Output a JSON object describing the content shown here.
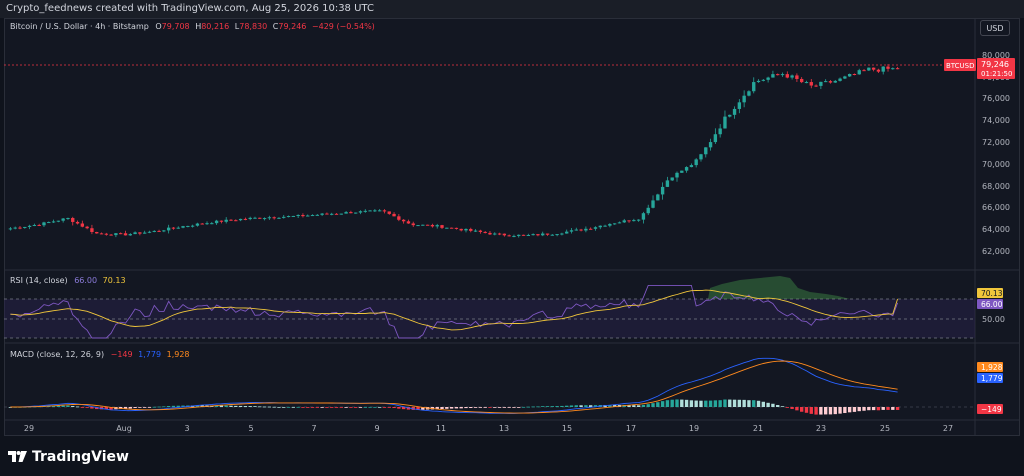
{
  "header": {
    "attribution": "Crypto_feednews created with TradingView.com, Aug 25, 2026 10:38 UTC"
  },
  "currency_button": "USD",
  "legend_main": {
    "title": "Bitcoin / U.S. Dollar · 4h · Bitstamp",
    "o_label": "O",
    "o_value": "79,708",
    "h_label": "H",
    "h_value": "80,216",
    "l_label": "L",
    "l_value": "78,830",
    "c_label": "C",
    "c_value": "79,246",
    "change": "−429 (−0.54%)"
  },
  "legend_rsi": {
    "title": "RSI (14, close)",
    "v1": "66.00",
    "v2": "70.13"
  },
  "legend_macd": {
    "title": "MACD (close, 12, 26, 9)",
    "v1": "−149",
    "v2": "1,779",
    "v3": "1,928"
  },
  "price_axis": {
    "ticks": [
      "80,000",
      "78,000",
      "76,000",
      "74,000",
      "72,000",
      "70,000",
      "68,000",
      "66,000",
      "64,000",
      "62,000"
    ],
    "symbol_tag": "BTCUSD",
    "last_price": "79,246",
    "countdown": "01:21:50"
  },
  "rsi_axis": {
    "ticks": [
      "50.00"
    ],
    "badge_top": "70.13",
    "badge_bottom": "66.00"
  },
  "macd_axis": {
    "badge_signal": "1,928",
    "badge_macd": "1,779",
    "badge_hist": "−149"
  },
  "time_axis": [
    "29",
    "Aug",
    "3",
    "5",
    "7",
    "9",
    "11",
    "13",
    "15",
    "17",
    "19",
    "21",
    "23",
    "25",
    "27"
  ],
  "footer": {
    "brand": "TradingView"
  },
  "colors": {
    "up": "#26a69a",
    "down": "#f23645",
    "rsi": "#7e57c2",
    "rsi_ma": "#f0c63b",
    "macd": "#2962ff",
    "signal": "#ff8a1e",
    "background": "#131722"
  },
  "chart_data": [
    {
      "type": "candlestick",
      "title": "Bitcoin / U.S. Dollar · 4h · Bitstamp",
      "ylabel": "USD",
      "ylim": [
        60500,
        81500
      ],
      "x_ticks": [
        "29",
        "Aug",
        "3",
        "5",
        "7",
        "9",
        "11",
        "13",
        "15",
        "17",
        "19",
        "21",
        "23",
        "25",
        "27"
      ],
      "last": 79246,
      "close_path": [
        [
          "Jul 28",
          63600
        ],
        [
          "Jul 29",
          64000
        ],
        [
          "Jul 30",
          64600
        ],
        [
          "Jul 31",
          63100
        ],
        [
          "Aug 1",
          63000
        ],
        [
          "Aug 2",
          63300
        ],
        [
          "Aug 3",
          63800
        ],
        [
          "Aug 4",
          64200
        ],
        [
          "Aug 5",
          64500
        ],
        [
          "Aug 6",
          64700
        ],
        [
          "Aug 7",
          64800
        ],
        [
          "Aug 8",
          65000
        ],
        [
          "Aug 9",
          65200
        ],
        [
          "Aug 10",
          65300
        ],
        [
          "Aug 11",
          64000
        ],
        [
          "Aug 12",
          63800
        ],
        [
          "Aug 13",
          63400
        ],
        [
          "Aug 14",
          63000
        ],
        [
          "Aug 15",
          62900
        ],
        [
          "Aug 16",
          63100
        ],
        [
          "Aug 17",
          63500
        ],
        [
          "Aug 18",
          64100
        ],
        [
          "Aug 19",
          64600
        ],
        [
          "Aug 19.5",
          68500
        ],
        [
          "Aug 20",
          70200
        ],
        [
          "Aug 21",
          74500
        ],
        [
          "Aug 21.5",
          78000
        ],
        [
          "Aug 22",
          78800
        ],
        [
          "Aug 23",
          77500
        ],
        [
          "Aug 24",
          78200
        ],
        [
          "Aug 24.5",
          79200
        ],
        [
          "Aug 25",
          79246
        ]
      ]
    },
    {
      "type": "line",
      "title": "RSI (14, close)",
      "series": [
        {
          "name": "RSI",
          "last": 66.0
        },
        {
          "name": "RSI-based MA",
          "last": 70.13
        }
      ],
      "levels": [
        70,
        50,
        30
      ]
    },
    {
      "type": "line",
      "title": "MACD (close, 12, 26, 9)",
      "series": [
        {
          "name": "Histogram",
          "last": -149
        },
        {
          "name": "MACD",
          "last": 1779
        },
        {
          "name": "Signal",
          "last": 1928
        }
      ]
    }
  ]
}
